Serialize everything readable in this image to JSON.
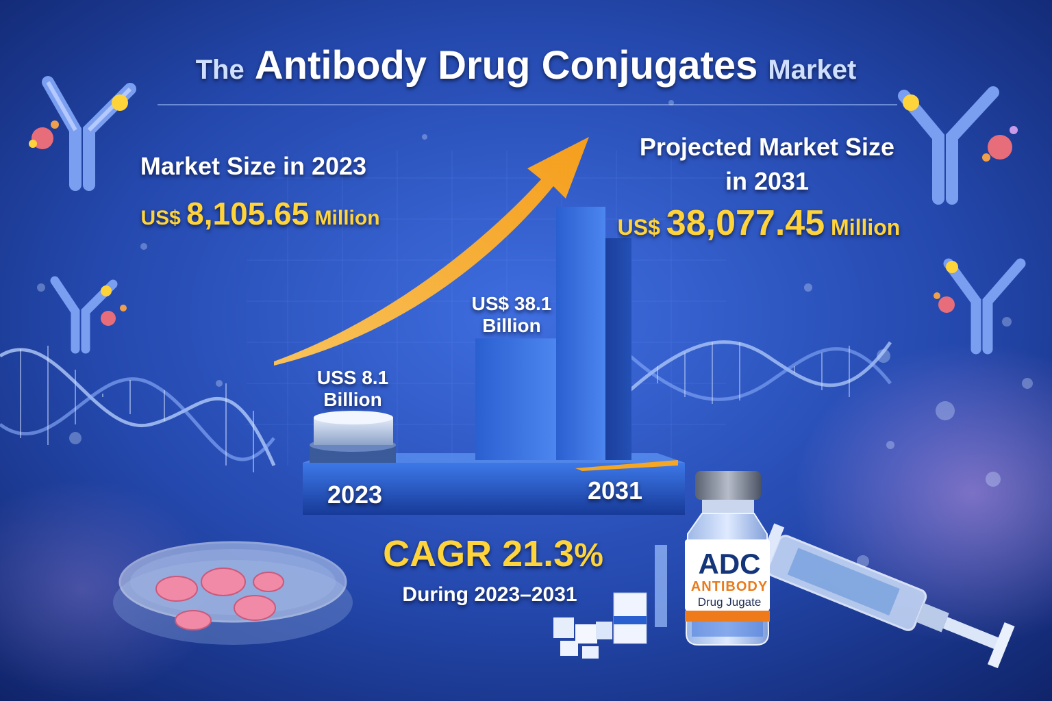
{
  "title": {
    "prefix": "The",
    "main": "Antibody Drug Conjugates",
    "suffix": "Market"
  },
  "left_panel": {
    "heading": "Market Size in 2023",
    "currency": "US$",
    "amount": "8,105.65",
    "unit": "Million"
  },
  "right_panel": {
    "heading_line1": "Projected Market Size",
    "heading_line2": "in 2031",
    "currency": "US$",
    "amount": "38,077.45",
    "unit": "Million"
  },
  "chart_data": {
    "type": "bar",
    "categories": [
      "2023",
      "2031"
    ],
    "values": [
      8.1,
      38.1
    ],
    "data_labels": [
      [
        "USS 8.1",
        "Billion"
      ],
      [
        "US$ 38.1",
        "Billion"
      ]
    ],
    "title": "",
    "xlabel": "",
    "ylabel": "",
    "grid": true,
    "trend_arrow": true
  },
  "cagr": {
    "label": "CAGR",
    "value": "21.3",
    "percent_sign": "%",
    "period": "During 2023–2031"
  },
  "vial": {
    "line1": "ADC",
    "line2": "ANTIBODY",
    "line3": "Drug Jugate"
  },
  "colors": {
    "background": "#1f3f9e",
    "accent_gold": "#ffd43a",
    "arrow": "#f5a623",
    "bar": "#2a66d8"
  },
  "icons": [
    "antibody-icon",
    "dna-helix-icon",
    "petri-dish-icon",
    "vial-icon",
    "syringe-icon"
  ]
}
